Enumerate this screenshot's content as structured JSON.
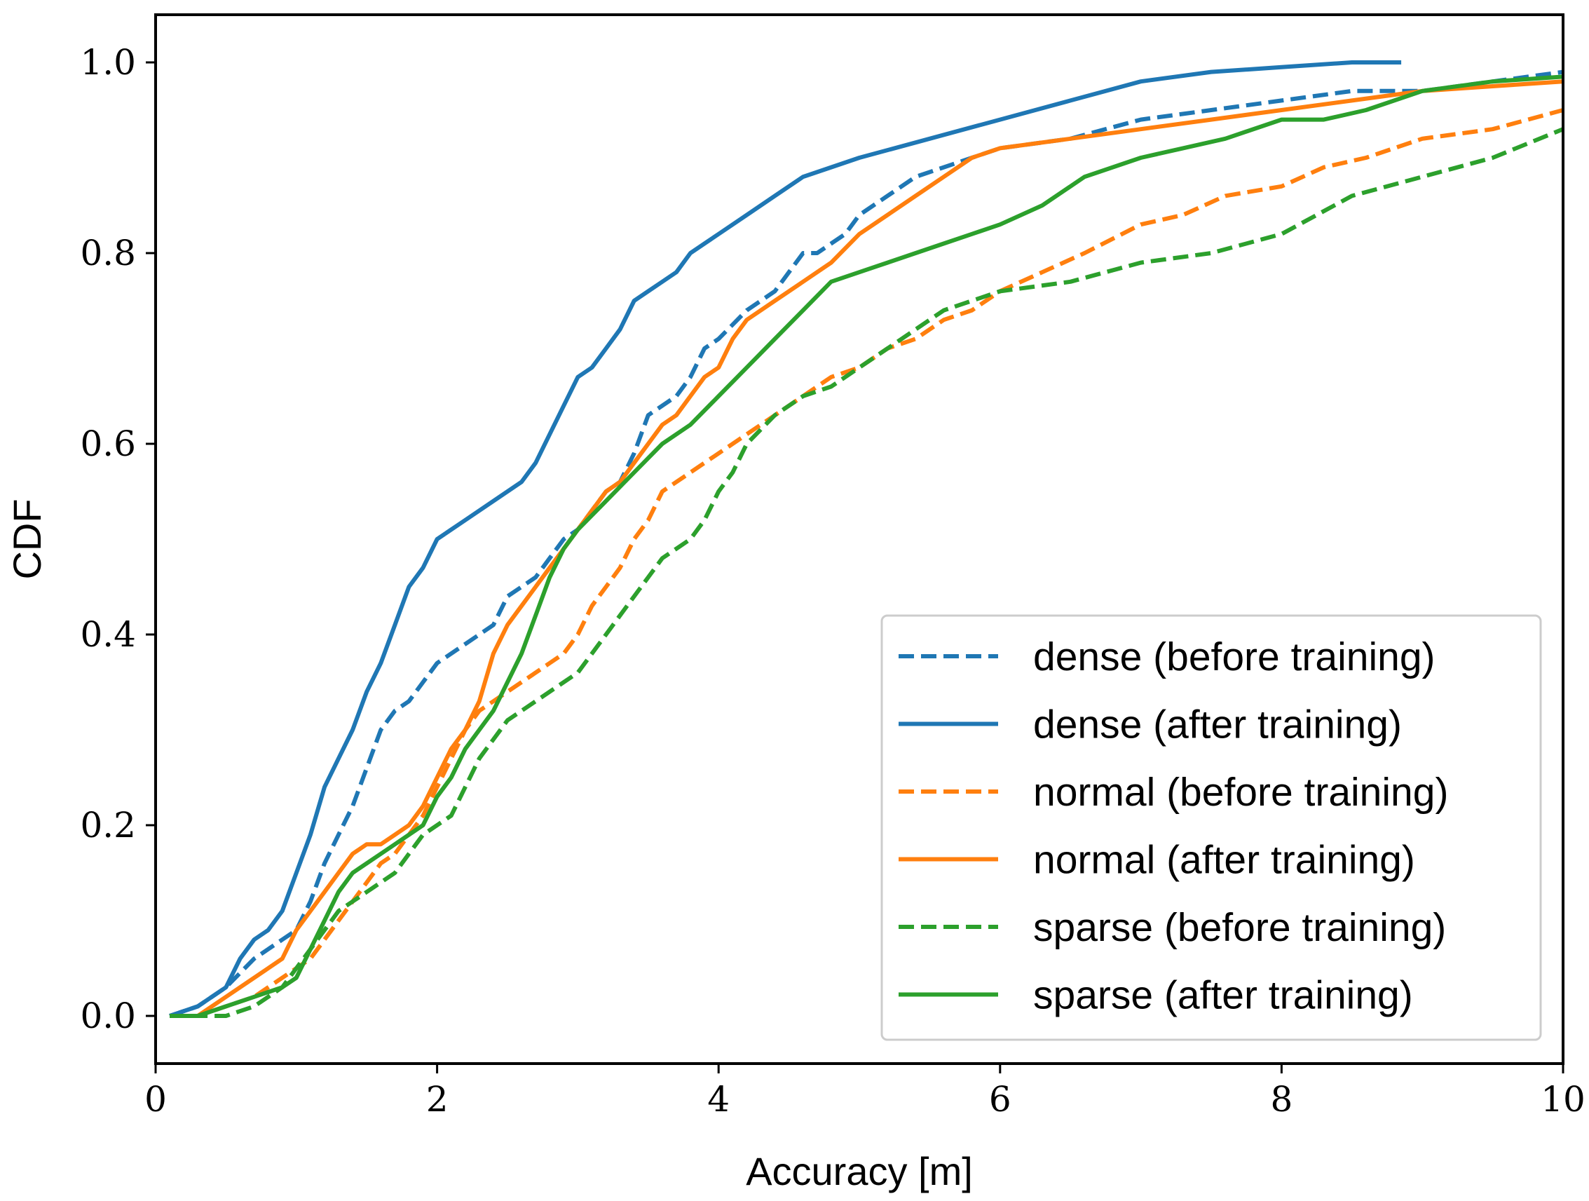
{
  "chart_data": {
    "type": "line",
    "title": "",
    "xlabel": "Accuracy [m]",
    "ylabel": "CDF",
    "xlim": [
      0,
      10
    ],
    "ylim": [
      -0.05,
      1.05
    ],
    "xticks": [
      0,
      2,
      4,
      6,
      8,
      10
    ],
    "yticks": [
      0.0,
      0.2,
      0.4,
      0.6,
      0.8,
      1.0
    ],
    "xtick_labels": [
      "0",
      "2",
      "4",
      "6",
      "8",
      "10"
    ],
    "ytick_labels": [
      "0.0",
      "0.2",
      "0.4",
      "0.6",
      "0.8",
      "1.0"
    ],
    "grid": false,
    "legend_position": "lower-right",
    "series": [
      {
        "name": "dense (before training)",
        "color": "#1f77b4",
        "style": "dashed",
        "x": [
          0.1,
          0.3,
          0.5,
          0.7,
          0.9,
          1.0,
          1.1,
          1.2,
          1.3,
          1.4,
          1.5,
          1.6,
          1.7,
          1.8,
          1.9,
          2.0,
          2.2,
          2.4,
          2.5,
          2.6,
          2.7,
          2.8,
          2.9,
          3.0,
          3.1,
          3.2,
          3.3,
          3.4,
          3.5,
          3.6,
          3.7,
          3.8,
          3.9,
          4.0,
          4.2,
          4.4,
          4.5,
          4.6,
          4.7,
          4.8,
          4.9,
          5.0,
          5.2,
          5.4,
          5.6,
          5.8,
          6.0,
          6.5,
          7.0,
          7.5,
          8.0,
          8.5,
          9.0,
          9.5,
          10.0
        ],
        "y": [
          0.0,
          0.01,
          0.03,
          0.06,
          0.08,
          0.09,
          0.12,
          0.16,
          0.19,
          0.22,
          0.26,
          0.3,
          0.32,
          0.33,
          0.35,
          0.37,
          0.39,
          0.41,
          0.44,
          0.45,
          0.46,
          0.48,
          0.5,
          0.51,
          0.53,
          0.55,
          0.56,
          0.59,
          0.63,
          0.64,
          0.65,
          0.67,
          0.7,
          0.71,
          0.74,
          0.76,
          0.78,
          0.8,
          0.8,
          0.81,
          0.82,
          0.84,
          0.86,
          0.88,
          0.89,
          0.9,
          0.91,
          0.92,
          0.94,
          0.95,
          0.96,
          0.97,
          0.97,
          0.98,
          0.99
        ]
      },
      {
        "name": "dense (after training)",
        "color": "#1f77b4",
        "style": "solid",
        "x": [
          0.1,
          0.3,
          0.5,
          0.6,
          0.7,
          0.8,
          0.9,
          1.0,
          1.1,
          1.2,
          1.3,
          1.4,
          1.5,
          1.6,
          1.7,
          1.8,
          1.9,
          2.0,
          2.1,
          2.2,
          2.4,
          2.5,
          2.6,
          2.7,
          2.8,
          2.9,
          3.0,
          3.1,
          3.2,
          3.3,
          3.4,
          3.5,
          3.6,
          3.7,
          3.8,
          3.9,
          4.0,
          4.2,
          4.4,
          4.6,
          4.8,
          5.0,
          5.5,
          6.0,
          6.5,
          7.0,
          7.5,
          8.0,
          8.5,
          8.85
        ],
        "y": [
          0.0,
          0.01,
          0.03,
          0.06,
          0.08,
          0.09,
          0.11,
          0.15,
          0.19,
          0.24,
          0.27,
          0.3,
          0.34,
          0.37,
          0.41,
          0.45,
          0.47,
          0.5,
          0.51,
          0.52,
          0.54,
          0.55,
          0.56,
          0.58,
          0.61,
          0.64,
          0.67,
          0.68,
          0.7,
          0.72,
          0.75,
          0.76,
          0.77,
          0.78,
          0.8,
          0.81,
          0.82,
          0.84,
          0.86,
          0.88,
          0.89,
          0.9,
          0.92,
          0.94,
          0.96,
          0.98,
          0.99,
          0.995,
          1.0,
          1.0
        ]
      },
      {
        "name": "normal (before training)",
        "color": "#ff7f0e",
        "style": "dashed",
        "x": [
          0.1,
          0.3,
          0.5,
          0.7,
          0.9,
          1.0,
          1.1,
          1.2,
          1.3,
          1.4,
          1.5,
          1.6,
          1.7,
          1.8,
          1.9,
          2.0,
          2.1,
          2.2,
          2.3,
          2.4,
          2.5,
          2.6,
          2.7,
          2.8,
          2.9,
          3.0,
          3.1,
          3.2,
          3.3,
          3.4,
          3.5,
          3.6,
          3.7,
          3.8,
          3.9,
          4.0,
          4.2,
          4.4,
          4.6,
          4.8,
          5.0,
          5.2,
          5.4,
          5.6,
          5.8,
          6.0,
          6.3,
          6.6,
          7.0,
          7.3,
          7.6,
          8.0,
          8.3,
          8.6,
          9.0,
          9.5,
          10.0
        ],
        "y": [
          0.0,
          0.0,
          0.01,
          0.02,
          0.04,
          0.05,
          0.06,
          0.08,
          0.1,
          0.12,
          0.14,
          0.16,
          0.17,
          0.19,
          0.21,
          0.24,
          0.27,
          0.3,
          0.32,
          0.33,
          0.34,
          0.35,
          0.36,
          0.37,
          0.38,
          0.4,
          0.43,
          0.45,
          0.47,
          0.5,
          0.52,
          0.55,
          0.56,
          0.57,
          0.58,
          0.59,
          0.61,
          0.63,
          0.65,
          0.67,
          0.68,
          0.7,
          0.71,
          0.73,
          0.74,
          0.76,
          0.78,
          0.8,
          0.83,
          0.84,
          0.86,
          0.87,
          0.89,
          0.9,
          0.92,
          0.93,
          0.95
        ]
      },
      {
        "name": "normal (after training)",
        "color": "#ff7f0e",
        "style": "solid",
        "x": [
          0.1,
          0.3,
          0.5,
          0.7,
          0.9,
          1.0,
          1.1,
          1.2,
          1.3,
          1.4,
          1.5,
          1.6,
          1.7,
          1.8,
          1.9,
          2.0,
          2.1,
          2.2,
          2.3,
          2.4,
          2.5,
          2.6,
          2.7,
          2.8,
          2.9,
          3.0,
          3.1,
          3.2,
          3.3,
          3.4,
          3.5,
          3.6,
          3.7,
          3.8,
          3.9,
          4.0,
          4.1,
          4.2,
          4.4,
          4.6,
          4.8,
          5.0,
          5.2,
          5.4,
          5.6,
          5.8,
          6.0,
          6.5,
          7.0,
          7.5,
          8.0,
          8.5,
          9.0,
          9.5,
          10.0
        ],
        "y": [
          0.0,
          0.0,
          0.02,
          0.04,
          0.06,
          0.09,
          0.11,
          0.13,
          0.15,
          0.17,
          0.18,
          0.18,
          0.19,
          0.2,
          0.22,
          0.25,
          0.28,
          0.3,
          0.33,
          0.38,
          0.41,
          0.43,
          0.45,
          0.47,
          0.49,
          0.51,
          0.53,
          0.55,
          0.56,
          0.58,
          0.6,
          0.62,
          0.63,
          0.65,
          0.67,
          0.68,
          0.71,
          0.73,
          0.75,
          0.77,
          0.79,
          0.82,
          0.84,
          0.86,
          0.88,
          0.9,
          0.91,
          0.92,
          0.93,
          0.94,
          0.95,
          0.96,
          0.97,
          0.975,
          0.98
        ]
      },
      {
        "name": "sparse (before training)",
        "color": "#2ca02c",
        "style": "dashed",
        "x": [
          0.1,
          0.3,
          0.5,
          0.7,
          0.9,
          1.0,
          1.1,
          1.2,
          1.3,
          1.4,
          1.5,
          1.6,
          1.7,
          1.8,
          1.9,
          2.0,
          2.1,
          2.2,
          2.3,
          2.4,
          2.5,
          2.6,
          2.7,
          2.8,
          2.9,
          3.0,
          3.1,
          3.2,
          3.3,
          3.4,
          3.5,
          3.6,
          3.7,
          3.8,
          3.9,
          4.0,
          4.1,
          4.2,
          4.4,
          4.6,
          4.8,
          5.0,
          5.2,
          5.4,
          5.6,
          5.8,
          6.0,
          6.5,
          7.0,
          7.5,
          8.0,
          8.5,
          9.0,
          9.5,
          10.0
        ],
        "y": [
          0.0,
          0.0,
          0.0,
          0.01,
          0.03,
          0.05,
          0.07,
          0.09,
          0.11,
          0.12,
          0.13,
          0.14,
          0.15,
          0.17,
          0.19,
          0.2,
          0.21,
          0.24,
          0.27,
          0.29,
          0.31,
          0.32,
          0.33,
          0.34,
          0.35,
          0.36,
          0.38,
          0.4,
          0.42,
          0.44,
          0.46,
          0.48,
          0.49,
          0.5,
          0.52,
          0.55,
          0.57,
          0.6,
          0.63,
          0.65,
          0.66,
          0.68,
          0.7,
          0.72,
          0.74,
          0.75,
          0.76,
          0.77,
          0.79,
          0.8,
          0.82,
          0.86,
          0.88,
          0.9,
          0.93
        ]
      },
      {
        "name": "sparse (after training)",
        "color": "#2ca02c",
        "style": "solid",
        "x": [
          0.1,
          0.3,
          0.5,
          0.7,
          0.9,
          1.0,
          1.1,
          1.2,
          1.3,
          1.4,
          1.5,
          1.6,
          1.7,
          1.8,
          1.9,
          2.0,
          2.1,
          2.2,
          2.3,
          2.4,
          2.5,
          2.6,
          2.7,
          2.8,
          2.9,
          3.0,
          3.2,
          3.4,
          3.6,
          3.8,
          4.0,
          4.2,
          4.4,
          4.6,
          4.8,
          5.0,
          5.2,
          5.4,
          5.6,
          5.8,
          6.0,
          6.3,
          6.6,
          7.0,
          7.3,
          7.6,
          8.0,
          8.3,
          8.6,
          9.0,
          9.5,
          10.0
        ],
        "y": [
          0.0,
          0.0,
          0.01,
          0.02,
          0.03,
          0.04,
          0.07,
          0.1,
          0.13,
          0.15,
          0.16,
          0.17,
          0.18,
          0.19,
          0.2,
          0.23,
          0.25,
          0.28,
          0.3,
          0.32,
          0.35,
          0.38,
          0.42,
          0.46,
          0.49,
          0.51,
          0.54,
          0.57,
          0.6,
          0.62,
          0.65,
          0.68,
          0.71,
          0.74,
          0.77,
          0.78,
          0.79,
          0.8,
          0.81,
          0.82,
          0.83,
          0.85,
          0.88,
          0.9,
          0.91,
          0.92,
          0.94,
          0.94,
          0.95,
          0.97,
          0.98,
          0.985
        ]
      }
    ]
  }
}
